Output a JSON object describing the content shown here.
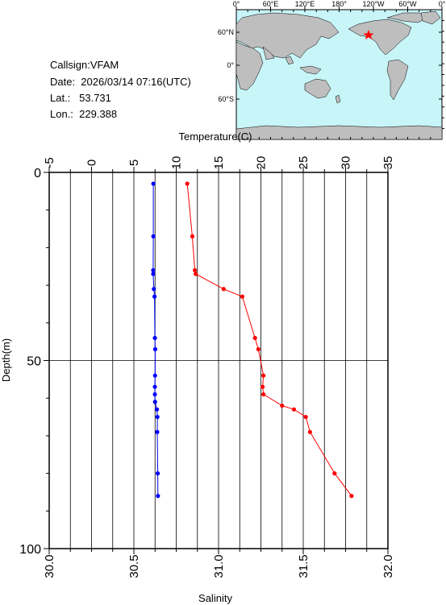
{
  "station": {
    "callsign": "Callsign:VFAM",
    "date": "Date:  2026/03/14 07:16(UTC)",
    "lat": "Lat.:   53.731",
    "lon": "Lon.:  229.388"
  },
  "map": {
    "top_labels": [
      "0°",
      "60°E",
      "120°E",
      "180°",
      "120°W",
      "60°W",
      "0°"
    ],
    "left_labels": [
      "60°N",
      "0°",
      "60°S"
    ],
    "ocean_color": "#c8f5f8",
    "land_color": "#bebebe",
    "marker_color": "#ff0000"
  },
  "chart_data": {
    "type": "line",
    "ylabel": "Depth(m)",
    "ylim": [
      0,
      100
    ],
    "yticks": [
      "0",
      "50",
      "100"
    ],
    "top_axis": {
      "label": "Temperature(C)",
      "lim": [
        -5,
        35
      ],
      "ticks": [
        "-5",
        "0",
        "5",
        "10",
        "15",
        "20",
        "25",
        "30",
        "35"
      ]
    },
    "bottom_axis": {
      "label": "Salinity",
      "lim": [
        30.0,
        32.0
      ],
      "ticks": [
        "30.0",
        "30.5",
        "31.0",
        "31.5",
        "32.0"
      ]
    },
    "grid": true,
    "series": [
      {
        "axis": "top",
        "color": "#ff0000",
        "points": [
          [
            11.3,
            3
          ],
          [
            11.9,
            17
          ],
          [
            12.2,
            26
          ],
          [
            12.3,
            27
          ],
          [
            15.6,
            31
          ],
          [
            17.8,
            33
          ],
          [
            19.3,
            44
          ],
          [
            19.7,
            47
          ],
          [
            20.3,
            54
          ],
          [
            20.2,
            57
          ],
          [
            20.3,
            59
          ],
          [
            22.5,
            62
          ],
          [
            23.9,
            63
          ],
          [
            25.3,
            65
          ],
          [
            25.8,
            69
          ],
          [
            28.7,
            80
          ],
          [
            30.7,
            86
          ]
        ]
      },
      {
        "axis": "bottom",
        "color": "#0000ff",
        "points": [
          [
            30.615,
            3
          ],
          [
            30.615,
            17
          ],
          [
            30.614,
            26
          ],
          [
            30.614,
            27
          ],
          [
            30.618,
            31
          ],
          [
            30.622,
            33
          ],
          [
            30.624,
            44
          ],
          [
            30.626,
            47
          ],
          [
            30.625,
            54
          ],
          [
            30.624,
            57
          ],
          [
            30.624,
            59
          ],
          [
            30.625,
            61
          ],
          [
            30.636,
            63
          ],
          [
            30.639,
            65
          ],
          [
            30.638,
            69
          ],
          [
            30.641,
            80
          ],
          [
            30.642,
            86
          ]
        ]
      }
    ]
  }
}
